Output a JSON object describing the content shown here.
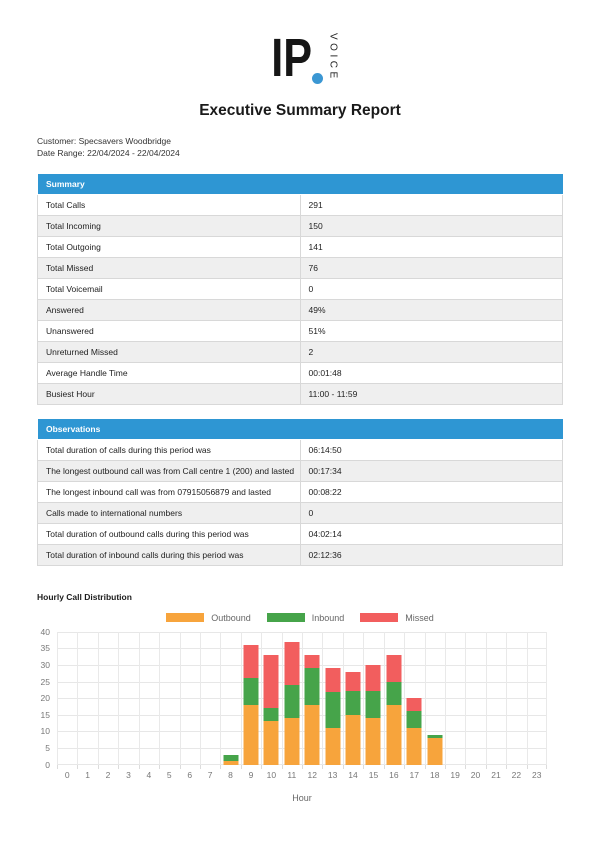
{
  "logo": {
    "text": "IP",
    "vertical": "VOICE",
    "dot_color": "#3b97d3"
  },
  "title": "Executive Summary Report",
  "meta": {
    "customer": "Customer: Specsavers Woodbridge",
    "date_range": "Date Range: 22/04/2024 - 22/04/2024"
  },
  "summary": {
    "header": "Summary",
    "rows": [
      {
        "label": "Total Calls",
        "value": "291"
      },
      {
        "label": "Total Incoming",
        "value": "150"
      },
      {
        "label": "Total Outgoing",
        "value": "141"
      },
      {
        "label": "Total Missed",
        "value": "76"
      },
      {
        "label": "Total Voicemail",
        "value": "0"
      },
      {
        "label": "Answered",
        "value": "49%"
      },
      {
        "label": "Unanswered",
        "value": "51%"
      },
      {
        "label": "Unreturned Missed",
        "value": "2"
      },
      {
        "label": "Average Handle Time",
        "value": "00:01:48"
      },
      {
        "label": "Busiest Hour",
        "value": "11:00 - 11:59"
      }
    ]
  },
  "observations": {
    "header": "Observations",
    "rows": [
      {
        "label": "Total duration of calls during this period was",
        "value": "06:14:50"
      },
      {
        "label": "The longest outbound call was from Call centre 1 (200) and lasted",
        "value": "00:17:34"
      },
      {
        "label": "The longest inbound call was from 07915056879 and lasted",
        "value": "00:08:22"
      },
      {
        "label": "Calls made to international numbers",
        "value": "0"
      },
      {
        "label": "Total duration of outbound calls during this period was",
        "value": "04:02:14"
      },
      {
        "label": "Total duration of inbound calls during this period was",
        "value": "02:12:36"
      }
    ]
  },
  "chart_data": {
    "type": "bar",
    "stacked": true,
    "title": "Hourly Call Distribution",
    "xlabel": "Hour",
    "ylabel": "",
    "ylim": [
      0,
      40
    ],
    "ytick_step": 5,
    "grid": true,
    "legend_position": "top",
    "categories": [
      "0",
      "1",
      "2",
      "3",
      "4",
      "5",
      "6",
      "7",
      "8",
      "9",
      "10",
      "11",
      "12",
      "13",
      "14",
      "15",
      "16",
      "17",
      "18",
      "19",
      "20",
      "21",
      "22",
      "23"
    ],
    "series": [
      {
        "name": "Outbound",
        "color": "#f7a43c",
        "values": [
          0,
          0,
          0,
          0,
          0,
          0,
          0,
          0,
          1,
          18,
          13,
          14,
          18,
          11,
          15,
          14,
          18,
          11,
          8,
          0,
          0,
          0,
          0,
          0
        ]
      },
      {
        "name": "Inbound",
        "color": "#46a44a",
        "values": [
          0,
          0,
          0,
          0,
          0,
          0,
          0,
          0,
          2,
          8,
          4,
          10,
          11,
          11,
          7,
          8,
          7,
          5,
          1,
          0,
          0,
          0,
          0,
          0
        ]
      },
      {
        "name": "Missed",
        "color": "#f25e5e",
        "values": [
          0,
          0,
          0,
          0,
          0,
          0,
          0,
          0,
          0,
          10,
          16,
          13,
          4,
          7,
          6,
          8,
          8,
          4,
          0,
          0,
          0,
          0,
          0,
          0
        ]
      }
    ]
  },
  "colors": {
    "table_header": "#2e96d3",
    "row_alt": "#efefef",
    "border": "#d8d8d8"
  }
}
